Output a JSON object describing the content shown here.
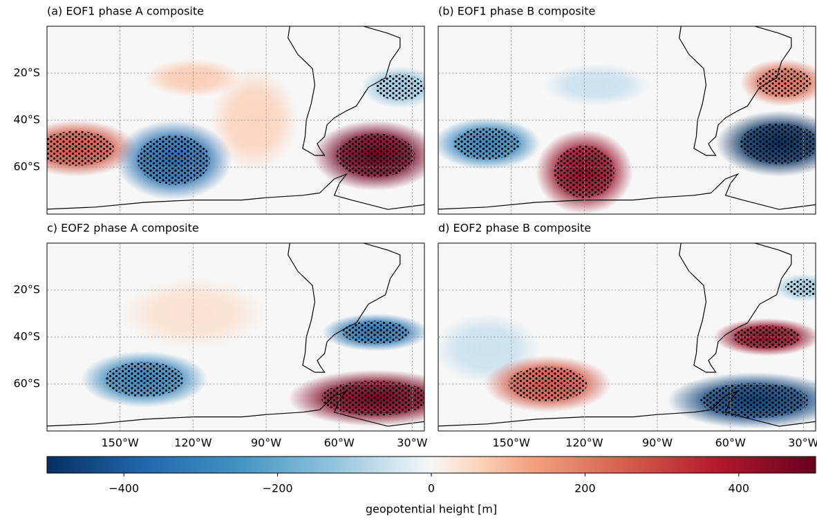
{
  "figure": {
    "lon_range": [
      -180,
      -25
    ],
    "lat_range": [
      -80,
      0
    ],
    "lon_ticks": [
      {
        "value": -150,
        "label": "150°W"
      },
      {
        "value": -120,
        "label": "120°W"
      },
      {
        "value": -90,
        "label": "90°W"
      },
      {
        "value": -60,
        "label": "60°W"
      },
      {
        "value": -30,
        "label": "30°W"
      }
    ],
    "lat_ticks": [
      {
        "value": -20,
        "label": "20°S"
      },
      {
        "value": -40,
        "label": "40°S"
      },
      {
        "value": -60,
        "label": "60°S"
      }
    ],
    "panels": [
      {
        "title": "(a) EOF1 phase A composite",
        "anomalies": [
          {
            "lon": -95,
            "lat": -40,
            "rx": 18,
            "ry": 22,
            "value": 60,
            "stippled": false
          },
          {
            "lon": -120,
            "lat": -22,
            "rx": 20,
            "ry": 8,
            "value": 70,
            "stippled": false
          },
          {
            "lon": -168,
            "lat": -52,
            "rx": 25,
            "ry": 12,
            "value": 260,
            "stippled": true
          },
          {
            "lon": -128,
            "lat": -57,
            "rx": 24,
            "ry": 17,
            "value": -350,
            "stippled": true
          },
          {
            "lon": -45,
            "lat": -55,
            "rx": 26,
            "ry": 15,
            "value": 480,
            "stippled": true
          },
          {
            "lon": -35,
            "lat": -26,
            "rx": 16,
            "ry": 9,
            "value": -110,
            "stippled": true
          }
        ]
      },
      {
        "title": "(b) EOF1 phase B composite",
        "anomalies": [
          {
            "lon": -115,
            "lat": -25,
            "rx": 22,
            "ry": 9,
            "value": -60,
            "stippled": false
          },
          {
            "lon": -160,
            "lat": -50,
            "rx": 22,
            "ry": 11,
            "value": -280,
            "stippled": true
          },
          {
            "lon": -120,
            "lat": -62,
            "rx": 20,
            "ry": 18,
            "value": 420,
            "stippled": true
          },
          {
            "lon": -40,
            "lat": -50,
            "rx": 26,
            "ry": 14,
            "value": -500,
            "stippled": true
          },
          {
            "lon": -38,
            "lat": -24,
            "rx": 18,
            "ry": 10,
            "value": 220,
            "stippled": true
          }
        ]
      },
      {
        "title": "c) EOF2 phase A composite",
        "anomalies": [
          {
            "lon": -120,
            "lat": -30,
            "rx": 30,
            "ry": 15,
            "value": 40,
            "stippled": false
          },
          {
            "lon": -140,
            "lat": -58,
            "rx": 26,
            "ry": 12,
            "value": -280,
            "stippled": true
          },
          {
            "lon": -45,
            "lat": -38,
            "rx": 22,
            "ry": 8,
            "value": -320,
            "stippled": true
          },
          {
            "lon": -45,
            "lat": -66,
            "rx": 36,
            "ry": 12,
            "value": 460,
            "stippled": true
          }
        ]
      },
      {
        "title": "d) EOF2 phase B composite",
        "anomalies": [
          {
            "lon": -160,
            "lat": -45,
            "rx": 22,
            "ry": 15,
            "value": -60,
            "stippled": false
          },
          {
            "lon": -135,
            "lat": -60,
            "rx": 26,
            "ry": 12,
            "value": 260,
            "stippled": true
          },
          {
            "lon": -45,
            "lat": -40,
            "rx": 22,
            "ry": 8,
            "value": 420,
            "stippled": true
          },
          {
            "lon": -50,
            "lat": -67,
            "rx": 36,
            "ry": 12,
            "value": -450,
            "stippled": true
          },
          {
            "lon": -30,
            "lat": -19,
            "rx": 12,
            "ry": 6,
            "value": -100,
            "stippled": true
          }
        ]
      }
    ],
    "colorbar": {
      "lim": [
        -500,
        500
      ],
      "ticks": [
        {
          "value": -400,
          "label": "−400"
        },
        {
          "value": -200,
          "label": "−200"
        },
        0,
        200,
        400
      ],
      "label": "geopotential height [m]"
    }
  }
}
